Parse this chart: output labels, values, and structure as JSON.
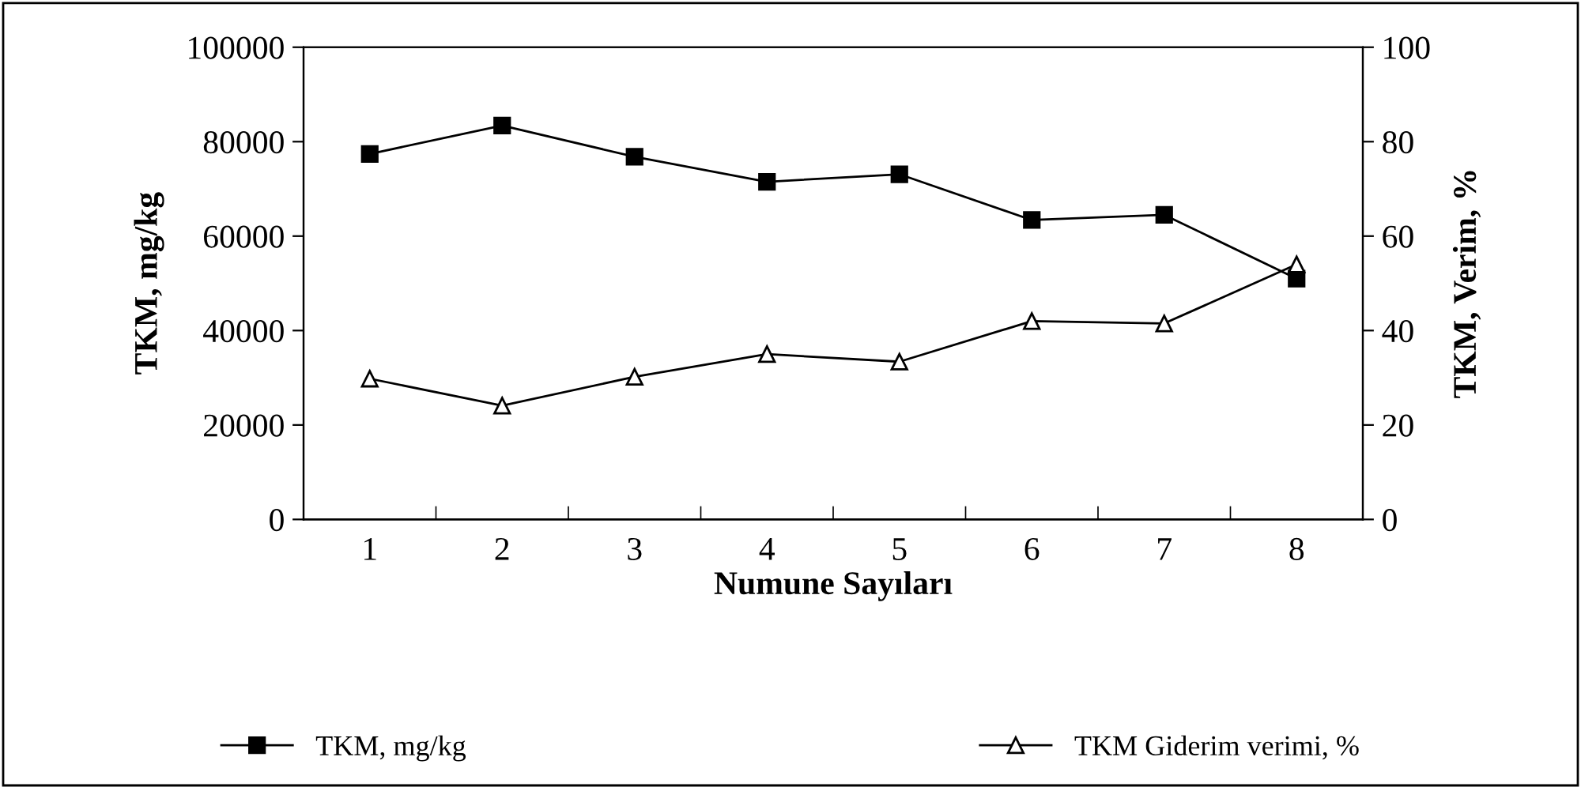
{
  "chart_data": {
    "type": "line",
    "xlabel": "Numune Sayıları",
    "ylabel": "TKM, mg/kg",
    "y2label": "TKM, Verim, %",
    "categories": [
      "1",
      "2",
      "3",
      "4",
      "5",
      "6",
      "7",
      "8"
    ],
    "ylim": [
      0,
      100000
    ],
    "yticks": [
      0,
      20000,
      40000,
      60000,
      80000,
      100000
    ],
    "y2lim": [
      0,
      100
    ],
    "y2ticks": [
      0,
      20,
      40,
      60,
      80,
      100
    ],
    "legend": "bottom",
    "grid": false,
    "series": [
      {
        "name": "TKM, mg/kg",
        "color": "#000000",
        "marker": "square",
        "values": [
          77400,
          83400,
          76800,
          71500,
          73100,
          63400,
          64500,
          51000
        ]
      },
      {
        "name": "TKM Giderim verimi, %",
        "color": "#000000",
        "marker": "triangle",
        "axis": "y2",
        "values": [
          29.8,
          24.1,
          30.2,
          35.0,
          33.4,
          42.0,
          41.5,
          54.0
        ]
      }
    ]
  }
}
